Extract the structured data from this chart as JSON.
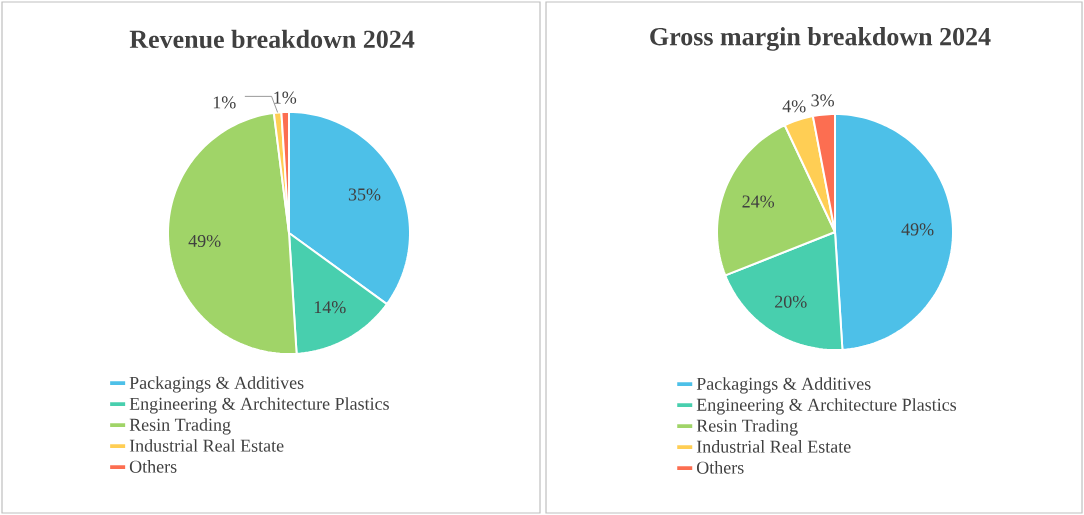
{
  "chart_data": [
    {
      "type": "pie",
      "title": "Revenue breakdown 2024",
      "categories": [
        "Packagings & Additives",
        "Engineering & Architecture Plastics",
        "Resin Trading",
        "Industrial Real Estate",
        "Others"
      ],
      "values": [
        35,
        14,
        49,
        1,
        1
      ],
      "colors": [
        "#4dc0e8",
        "#48cfae",
        "#a0d468",
        "#ffce54",
        "#fc6e51"
      ],
      "value_labels": [
        "35%",
        "14%",
        "49%",
        "1%",
        "1%"
      ],
      "legend": "bottom"
    },
    {
      "type": "pie",
      "title": "Gross margin breakdown 2024",
      "categories": [
        "Packagings & Additives",
        "Engineering & Architecture Plastics",
        "Resin Trading",
        "Industrial Real Estate",
        "Others"
      ],
      "values": [
        49,
        20,
        24,
        4,
        3
      ],
      "colors": [
        "#4dc0e8",
        "#48cfae",
        "#a0d468",
        "#ffce54",
        "#fc6e51"
      ],
      "value_labels": [
        "49%",
        "20%",
        "24%",
        "4%",
        "3%"
      ],
      "legend": "bottom"
    }
  ]
}
